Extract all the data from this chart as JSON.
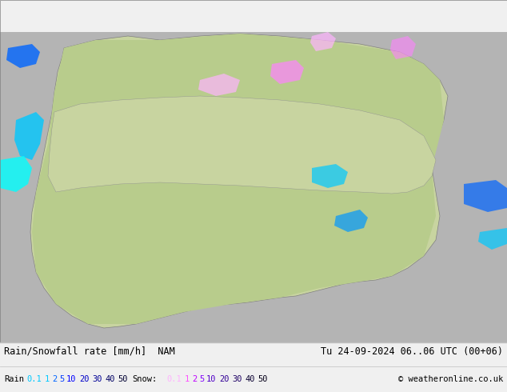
{
  "title_line1": "Rain/Snowfall rate [mm/h]  NAM",
  "title_line2": "Tu 24-09-2024 06..06 UTC (00+06)",
  "copyright": "© weatheronline.co.uk",
  "bg_color": "#d0d0d0",
  "map_bg_color": "#c8c8c8",
  "legend_rain_label": "Rain",
  "legend_snow_label": "Snow:",
  "rain_values": [
    "0.1",
    "1",
    "2",
    "5",
    "10",
    "20",
    "30",
    "40",
    "50"
  ],
  "snow_values": [
    "0.1",
    "1",
    "2",
    "5",
    "10",
    "20",
    "30",
    "40",
    "50"
  ],
  "rain_colors": [
    "#00ffff",
    "#00c8ff",
    "#0096ff",
    "#0064ff",
    "#003cff",
    "#0000ff",
    "#0000c8",
    "#000096",
    "#000064"
  ],
  "snow_colors": [
    "#ffb4ff",
    "#ff82ff",
    "#ff50ff",
    "#be00ff",
    "#8200ff",
    "#5000c8",
    "#320096",
    "#1e0064",
    "#0a0032"
  ],
  "footer_bg": "#f0f0f0",
  "rain_label_colors": [
    "#00c8ff",
    "#00c8ff",
    "#0064ff",
    "#0000ff",
    "#0000ff",
    "#0000c8",
    "#000096",
    "#000064",
    "#000032"
  ],
  "snow_label_colors": [
    "#ffb4ff",
    "#ff82ff",
    "#be00ff",
    "#8200ff",
    "#5000c8",
    "#320096",
    "#1e0064",
    "#0a0032",
    "#050019"
  ]
}
